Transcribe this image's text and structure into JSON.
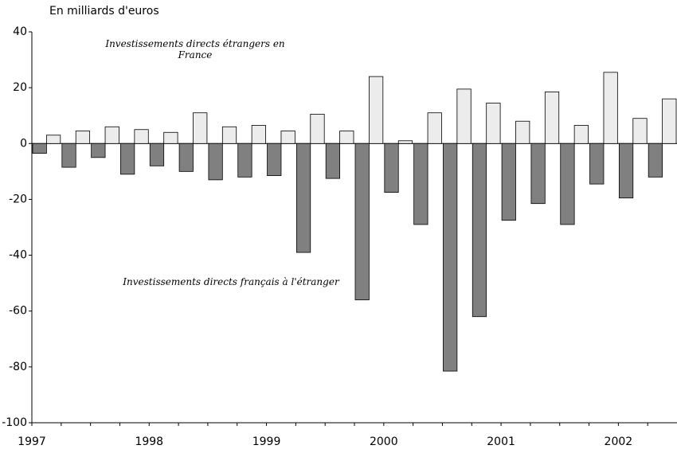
{
  "chart_data": {
    "type": "bar",
    "subtitle": "En milliards d'euros",
    "categories": [
      "1997",
      null,
      null,
      null,
      "1998",
      null,
      null,
      null,
      "1999",
      null,
      null,
      null,
      "2000",
      null,
      null,
      null,
      "2001",
      null,
      null,
      null,
      "2002",
      null
    ],
    "series": [
      {
        "name": "Investissements directs étrangers en France",
        "color": "#ececec",
        "values": [
          3,
          4.5,
          6,
          5,
          4,
          11,
          6,
          6.5,
          4.5,
          10.5,
          4.5,
          24,
          1,
          11,
          19.5,
          14.5,
          8,
          18.5,
          6.5,
          25.5,
          9,
          16
        ]
      },
      {
        "name": "Investissements directs français à l'étranger",
        "color": "#808080",
        "values": [
          -3.5,
          -8.5,
          -5,
          -11,
          -8,
          -10,
          -13,
          -12,
          -11.5,
          -39,
          -12.5,
          -56,
          -17.5,
          -29,
          -81.5,
          -62,
          -27.5,
          -21.5,
          -29,
          -14.5,
          -19.5,
          -12
        ]
      }
    ],
    "ylim": [
      -100,
      40
    ],
    "yticks": [
      40,
      20,
      0,
      -20,
      -40,
      -60,
      -80,
      -100
    ]
  }
}
